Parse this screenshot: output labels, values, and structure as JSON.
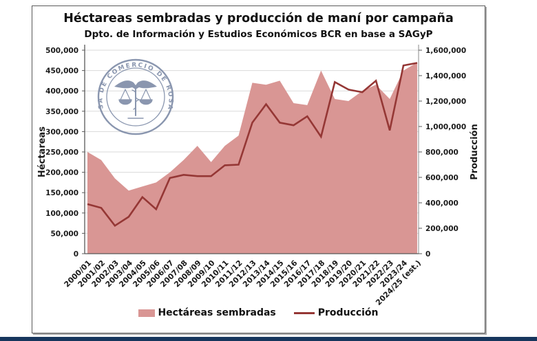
{
  "watermark": {
    "ring_text": "BOLSA DE COMERCIO DE ROSARIO",
    "color": "#6d7d9c"
  },
  "page": {
    "bottom_bar_color": "#17365d"
  },
  "chart_data": {
    "type": "area",
    "title": "Héctareas sembradas y producción de maní por campaña",
    "subtitle": "Dpto. de Información y Estudios Económicos BCR en base a SAGyP",
    "categories": [
      "2000/01",
      "2001/02",
      "2002/03",
      "2003/04",
      "2004/05",
      "2005/06",
      "2006/07",
      "2007/08",
      "2008/09",
      "2009/10",
      "2010/11",
      "2011/12",
      "2012/13",
      "2013/14",
      "2014/15",
      "2015/16",
      "2016/17",
      "2017/18",
      "2018/19",
      "2019/20",
      "2020/21",
      "2021/22",
      "2022/23",
      "2023/24",
      "2024/25 (est.)"
    ],
    "series": [
      {
        "name": "Hectáreas sembradas",
        "type": "area",
        "axis": "left",
        "color": "#d99694",
        "values": [
          250000,
          230000,
          185000,
          155000,
          165000,
          175000,
          200000,
          230000,
          265000,
          225000,
          265000,
          290000,
          420000,
          415000,
          425000,
          370000,
          365000,
          450000,
          380000,
          375000,
          400000,
          415000,
          380000,
          450000,
          470000
        ]
      },
      {
        "name": "Producción",
        "type": "line",
        "axis": "right",
        "color": "#953735",
        "values": [
          390000,
          360000,
          220000,
          290000,
          445000,
          350000,
          595000,
          620000,
          610000,
          610000,
          695000,
          700000,
          1030000,
          1175000,
          1030000,
          1010000,
          1080000,
          920000,
          1350000,
          1290000,
          1270000,
          1360000,
          970000,
          1480000,
          1500000
        ]
      }
    ],
    "left_axis": {
      "label": "Héctareas",
      "min": 0,
      "max": 500000,
      "step": 50000,
      "tick_labels": [
        "0",
        "50,000",
        "100,000",
        "150,000",
        "200,000",
        "250,000",
        "300,000",
        "350,000",
        "400,000",
        "450,000",
        "500,000"
      ]
    },
    "right_axis": {
      "label": "Producción",
      "min": 0,
      "max": 1600000,
      "step": 200000,
      "tick_labels": [
        "0",
        "200,000",
        "400,000",
        "600,000",
        "800,000",
        "1,000,000",
        "1,200,000",
        "1,400,000",
        "1,600,000"
      ]
    },
    "grid": true,
    "legend_position": "bottom"
  }
}
